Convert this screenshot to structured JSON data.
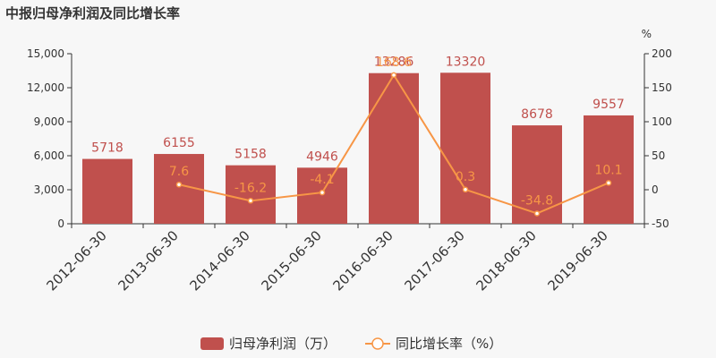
{
  "chart_data": {
    "type": "bar",
    "title": "中报归母净利润及同比增长率",
    "categories": [
      "2012-06-30",
      "2013-06-30",
      "2014-06-30",
      "2015-06-30",
      "2016-06-30",
      "2017-06-30",
      "2018-06-30",
      "2019-06-30"
    ],
    "series": [
      {
        "name": "归母净利润（万）",
        "type": "bar",
        "axis": "left",
        "values": [
          5718,
          6155,
          5158,
          4946,
          13286,
          13320,
          8678,
          9557
        ],
        "labels": [
          "5718",
          "6155",
          "5158",
          "4946",
          "13286",
          "13320",
          "8678",
          "9557"
        ]
      },
      {
        "name": "同比增长率（%）",
        "type": "line",
        "axis": "right",
        "values": [
          null,
          7.6,
          -16.2,
          -4.1,
          168.6,
          0.3,
          -34.8,
          10.1
        ],
        "labels": [
          "",
          "7.6",
          "-16.2",
          "-4.1",
          "168.6",
          "0.3",
          "-34.8",
          "10.1"
        ]
      }
    ],
    "y_left": {
      "min": 0,
      "max": 15000,
      "ticks": [
        "0",
        "3,000",
        "6,000",
        "9,000",
        "12,000",
        "15,000"
      ]
    },
    "y_right": {
      "min": -50,
      "max": 200,
      "unit": "%",
      "ticks": [
        "-50",
        "0",
        "50",
        "100",
        "150",
        "200"
      ]
    },
    "grid": false,
    "legend": "bottom-center",
    "colors": {
      "bar": "#c0504d",
      "line": "#f79646",
      "background": "#f7f7f7"
    }
  }
}
